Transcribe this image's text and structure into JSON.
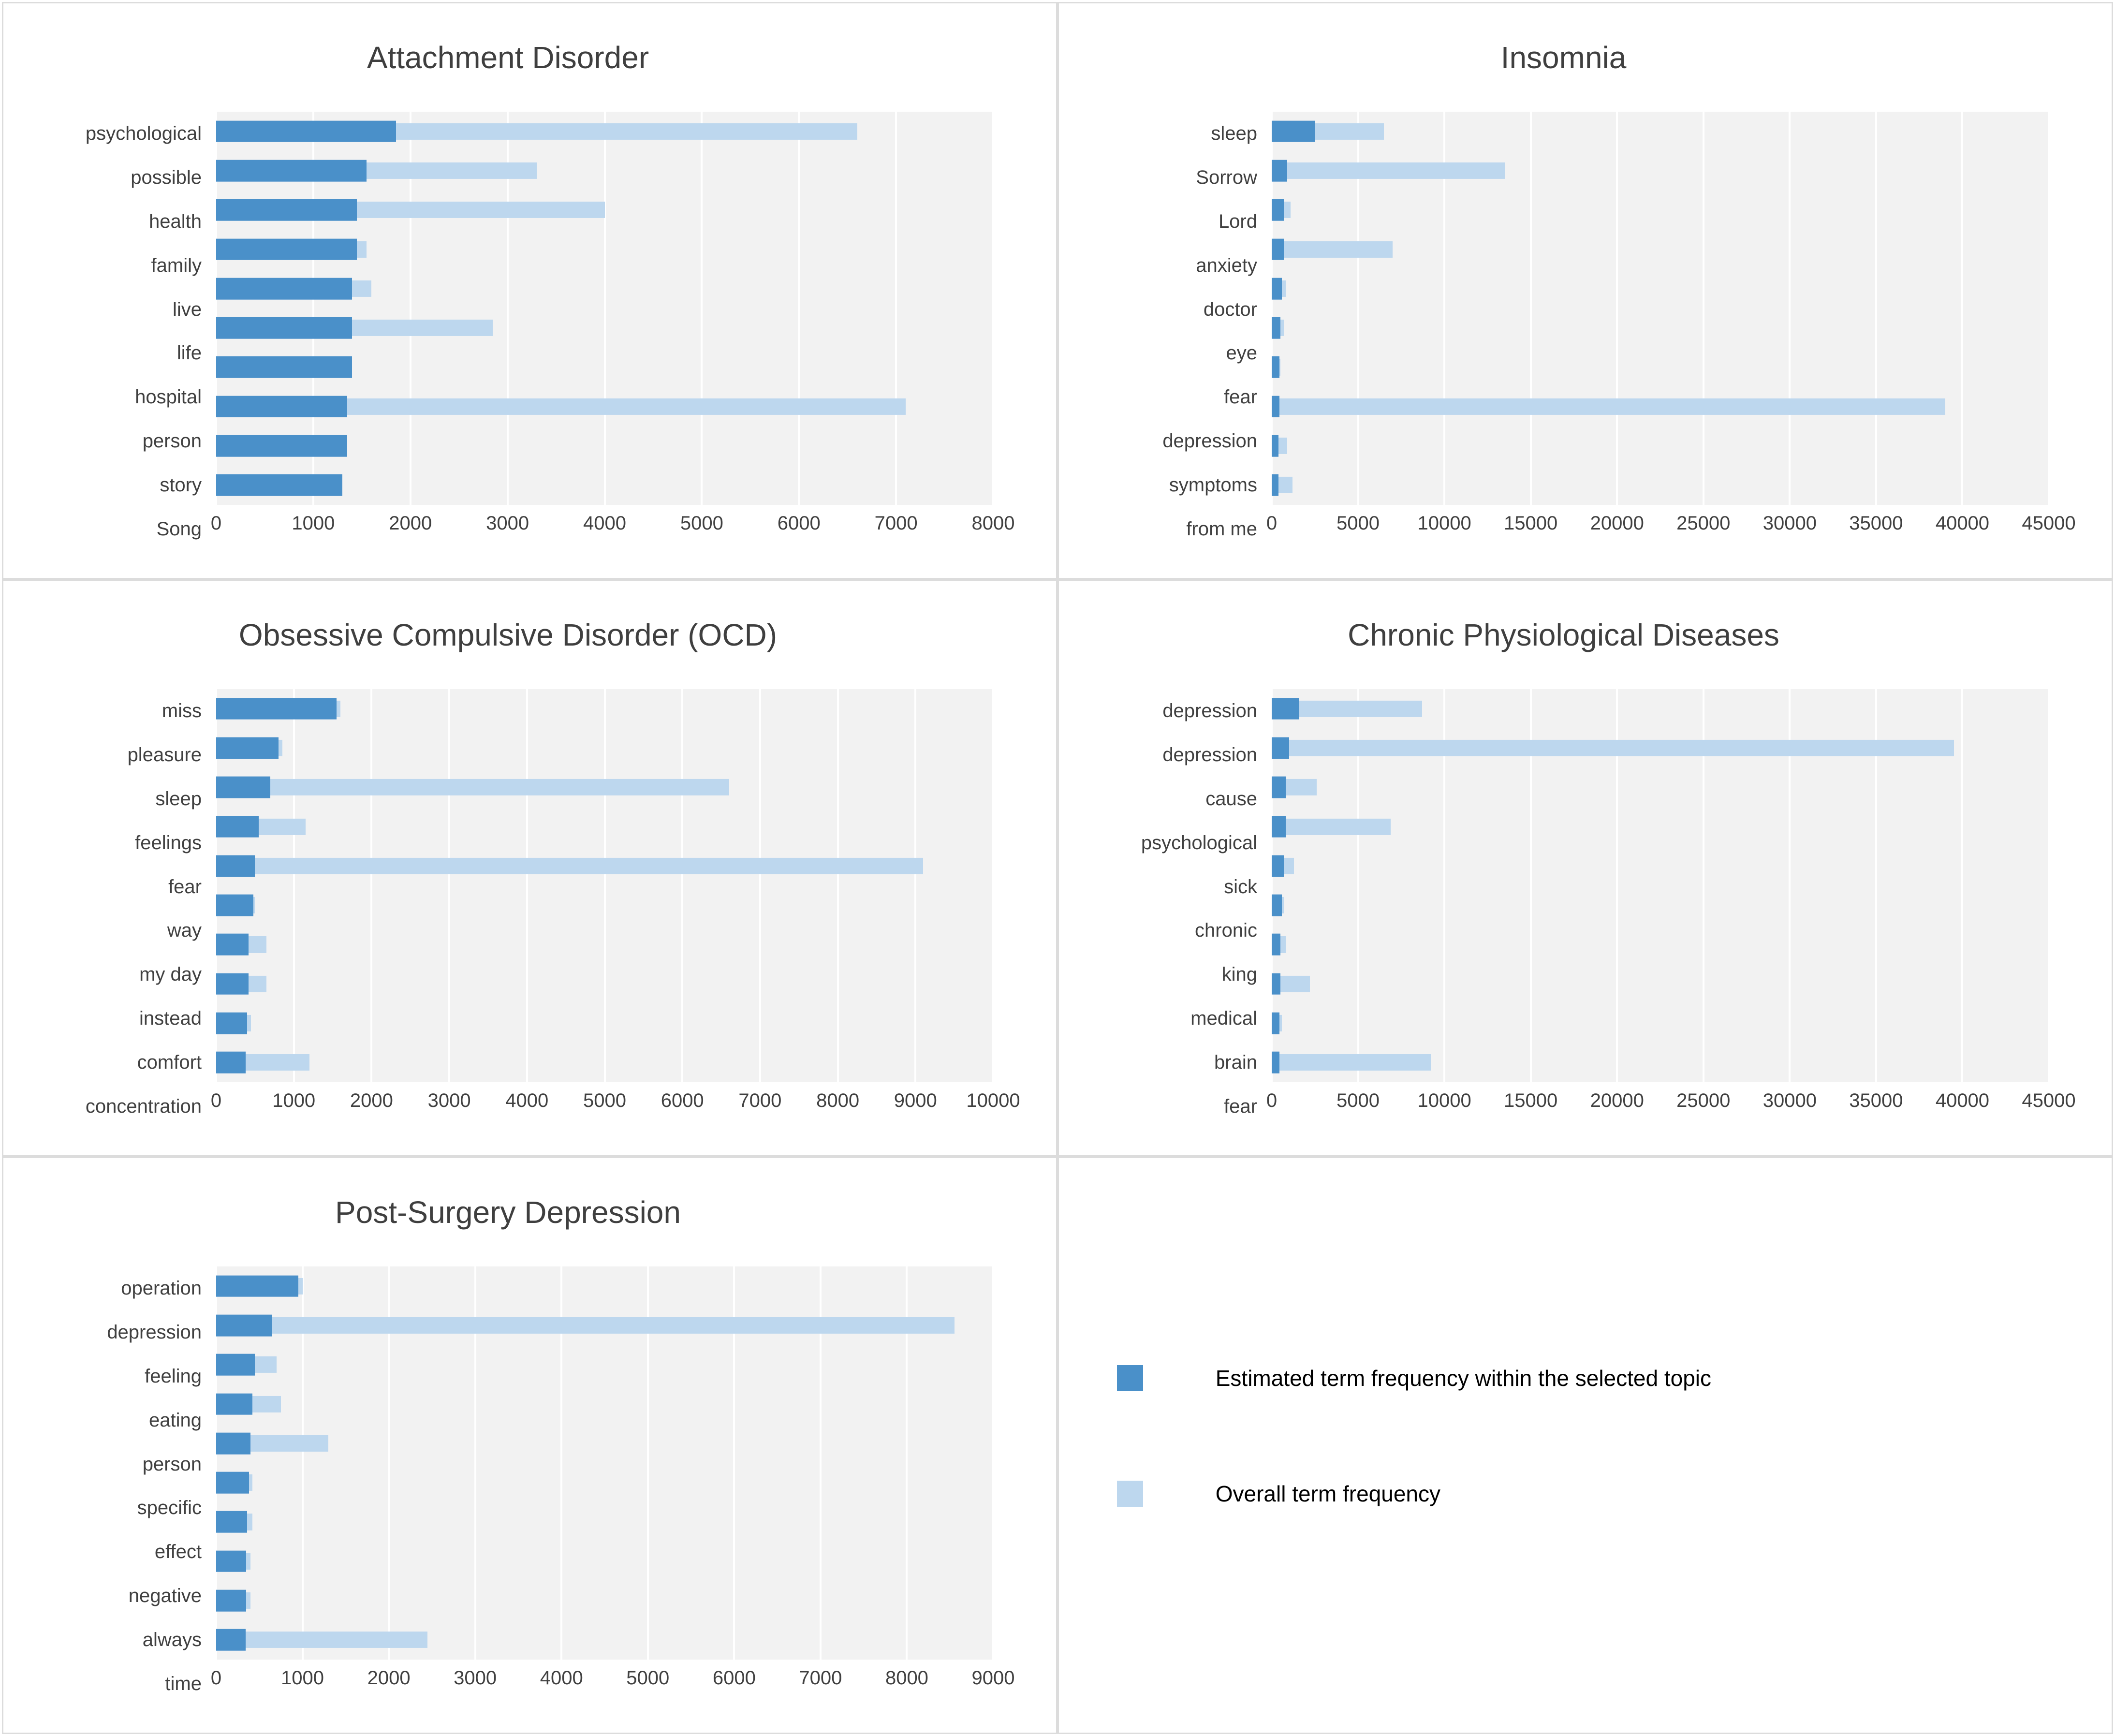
{
  "colors": {
    "estimated": "#4A90C9",
    "overall": "#BDD7EE",
    "plot_background": "#F2F2F2",
    "grid_line": "#FFFFFF"
  },
  "legend": {
    "items": [
      {
        "name": "estimated",
        "label": "Estimated term frequency within the selected topic"
      },
      {
        "name": "overall",
        "label": "Overall term frequency"
      }
    ]
  },
  "chart_data": [
    {
      "type": "bar",
      "orientation": "horizontal",
      "title": "Attachment Disorder",
      "categories": [
        "psychological",
        "possible",
        "health",
        "family",
        "live",
        "life",
        "hospital",
        "person",
        "story",
        "Song"
      ],
      "series": [
        {
          "name": "Estimated term frequency within the selected topic",
          "values": [
            1850,
            1550,
            1450,
            1450,
            1400,
            1400,
            1400,
            1350,
            1350,
            1300
          ]
        },
        {
          "name": "Overall term frequency",
          "values": [
            6600,
            3300,
            4000,
            1550,
            1600,
            2850,
            1400,
            7100,
            1350,
            1300
          ]
        }
      ],
      "xlim": [
        0,
        8000
      ],
      "tick_step": 1000,
      "grid": true,
      "legend_position": "shared-bottom-right"
    },
    {
      "type": "bar",
      "orientation": "horizontal",
      "title": "Insomnia",
      "categories": [
        "sleep",
        "Sorrow",
        "Lord",
        "anxiety",
        "doctor",
        "eye",
        "fear",
        "depression",
        "symptoms",
        "from me"
      ],
      "series": [
        {
          "name": "Estimated term frequency within the selected topic",
          "values": [
            2500,
            900,
            700,
            700,
            600,
            500,
            450,
            450,
            400,
            400
          ]
        },
        {
          "name": "Overall term frequency",
          "values": [
            6500,
            13500,
            1100,
            7000,
            800,
            700,
            500,
            39000,
            900,
            1200
          ]
        }
      ],
      "xlim": [
        0,
        45000
      ],
      "tick_step": 5000,
      "grid": true,
      "legend_position": "shared-bottom-right"
    },
    {
      "type": "bar",
      "orientation": "horizontal",
      "title": "Obsessive Compulsive Disorder (OCD)",
      "categories": [
        "miss",
        "pleasure",
        "sleep",
        "feelings",
        "fear",
        "way",
        "my day",
        "instead",
        "comfort",
        "concentration"
      ],
      "series": [
        {
          "name": "Estimated term frequency within the selected topic",
          "values": [
            1550,
            800,
            700,
            550,
            500,
            480,
            420,
            420,
            400,
            380
          ]
        },
        {
          "name": "Overall term frequency",
          "values": [
            1600,
            850,
            6600,
            1150,
            9100,
            500,
            650,
            650,
            450,
            1200
          ]
        }
      ],
      "xlim": [
        0,
        10000
      ],
      "tick_step": 1000,
      "grid": true,
      "legend_position": "shared-bottom-right"
    },
    {
      "type": "bar",
      "orientation": "horizontal",
      "title": "Chronic Physiological Diseases",
      "categories": [
        "depression",
        "depression",
        "cause",
        "psychological",
        "sick",
        "chronic",
        "king",
        "medical",
        "brain",
        "fear"
      ],
      "series": [
        {
          "name": "Estimated term frequency within the selected topic",
          "values": [
            1600,
            1000,
            800,
            800,
            700,
            600,
            500,
            500,
            450,
            450
          ]
        },
        {
          "name": "Overall term frequency",
          "values": [
            8700,
            39500,
            2600,
            6900,
            1300,
            700,
            800,
            2200,
            600,
            9200
          ]
        }
      ],
      "xlim": [
        0,
        45000
      ],
      "tick_step": 5000,
      "grid": true,
      "legend_position": "shared-bottom-right"
    },
    {
      "type": "bar",
      "orientation": "horizontal",
      "title": "Post-Surgery Depression",
      "categories": [
        "operation",
        "depression",
        "feeling",
        "eating",
        "person",
        "specific",
        "effect",
        "negative",
        "always",
        "time"
      ],
      "series": [
        {
          "name": "Estimated term frequency within the selected topic",
          "values": [
            950,
            650,
            450,
            420,
            400,
            380,
            360,
            350,
            350,
            340
          ]
        },
        {
          "name": "Overall term frequency",
          "values": [
            1000,
            8550,
            700,
            750,
            1300,
            420,
            420,
            400,
            400,
            2450
          ]
        }
      ],
      "xlim": [
        0,
        9000
      ],
      "tick_step": 1000,
      "grid": true,
      "legend_position": "shared-bottom-right"
    }
  ]
}
